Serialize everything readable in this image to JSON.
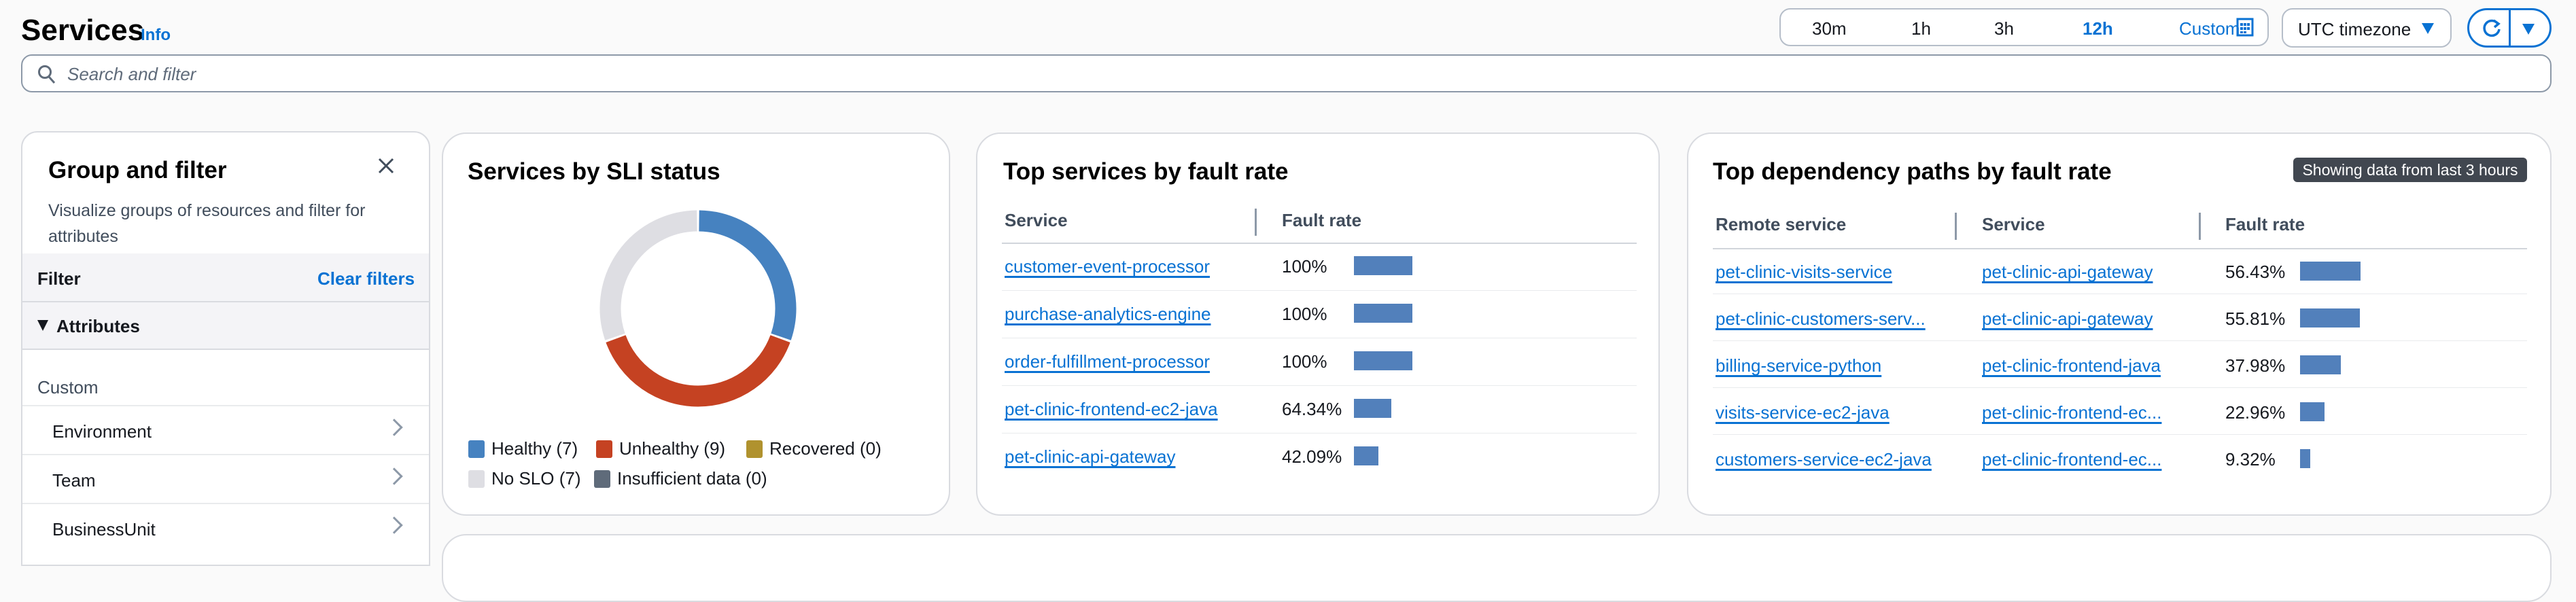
{
  "header": {
    "title": "Services",
    "info": "Info",
    "search_placeholder": "Search and filter"
  },
  "time_range": {
    "options": [
      "30m",
      "1h",
      "3h",
      "12h",
      "Custom"
    ],
    "selected": "12h",
    "timezone": "UTC timezone"
  },
  "group_filter": {
    "title": "Group and filter",
    "description_line1": "Visualize groups of resources and filter for",
    "description_line2": "attributes",
    "filter_label": "Filter",
    "clear_filters": "Clear filters",
    "attributes_label": "Attributes",
    "custom_label": "Custom",
    "items": [
      "Environment",
      "Team",
      "BusinessUnit"
    ]
  },
  "sli": {
    "title": "Services by SLI status",
    "colors": {
      "healthy": "#4682c0",
      "unhealthy": "#c54222",
      "recovered": "#b0922e",
      "no_slo": "#dedee3",
      "insufficient": "#5f6b7a"
    },
    "legend": [
      "Healthy (7)",
      "Unhealthy (9)",
      "Recovered (0)",
      "No SLO (7)",
      "Insufficient data (0)"
    ]
  },
  "chart_data": {
    "type": "pie",
    "title": "Services by SLI status",
    "categories": [
      "Healthy",
      "Unhealthy",
      "Recovered",
      "No SLO",
      "Insufficient data"
    ],
    "values": [
      7,
      9,
      0,
      7,
      0
    ]
  },
  "top_services": {
    "title": "Top services by fault rate",
    "columns": [
      "Service",
      "Fault rate"
    ],
    "rows": [
      {
        "service": "customer-event-processor",
        "rate": "100%",
        "value": 100
      },
      {
        "service": "purchase-analytics-engine",
        "rate": "100%",
        "value": 100
      },
      {
        "service": "order-fulfillment-processor",
        "rate": "100%",
        "value": 100
      },
      {
        "service": "pet-clinic-frontend-ec2-java",
        "rate": "64.34%",
        "value": 64.34
      },
      {
        "service": "pet-clinic-api-gateway",
        "rate": "42.09%",
        "value": 42.09
      }
    ]
  },
  "dependencies": {
    "title": "Top dependency paths by fault rate",
    "badge": "Showing data from last 3 hours",
    "columns": [
      "Remote service",
      "Service",
      "Fault rate"
    ],
    "rows": [
      {
        "remote": "pet-clinic-visits-service",
        "service": "pet-clinic-api-gateway",
        "rate": "56.43%",
        "value": 56.43
      },
      {
        "remote": "pet-clinic-customers-serv...",
        "service": "pet-clinic-api-gateway",
        "rate": "55.81%",
        "value": 55.81
      },
      {
        "remote": "billing-service-python",
        "service": "pet-clinic-frontend-java",
        "rate": "37.98%",
        "value": 37.98
      },
      {
        "remote": "visits-service-ec2-java",
        "service": "pet-clinic-frontend-ec...",
        "rate": "22.96%",
        "value": 22.96
      },
      {
        "remote": "customers-service-ec2-java",
        "service": "pet-clinic-frontend-ec...",
        "rate": "9.32%",
        "value": 9.32
      }
    ]
  }
}
